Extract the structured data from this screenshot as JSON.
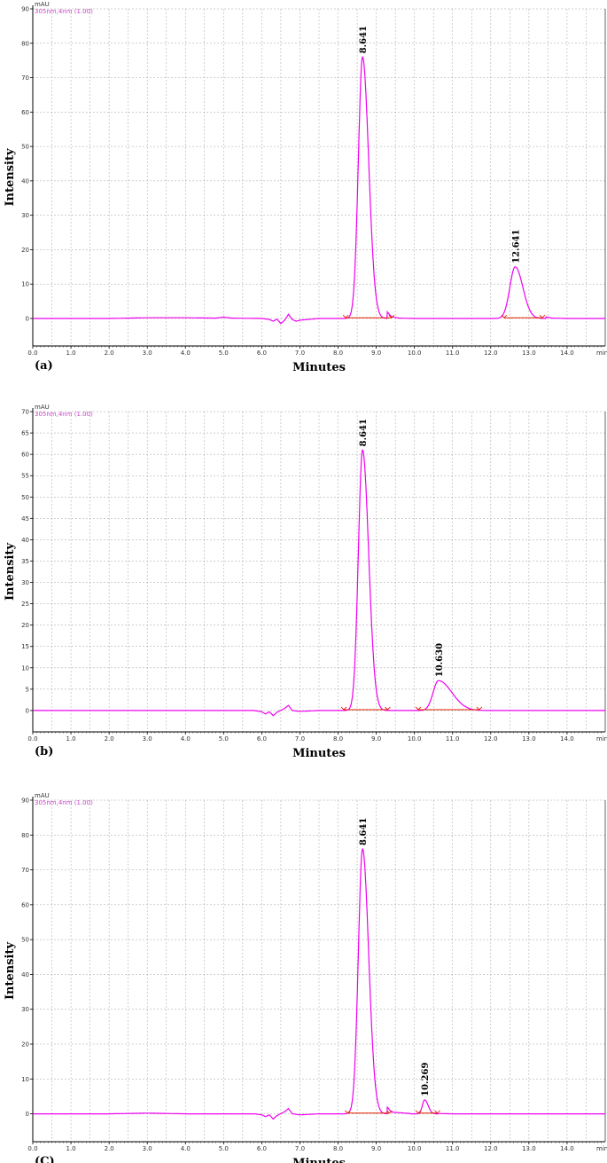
{
  "colors": {
    "trace": "#ee00ee",
    "baseline_marker": "#e02000",
    "grid": "#a0a0a0",
    "axis": "#000000",
    "detector_label": "#cc44cc"
  },
  "chart_data": [
    {
      "type": "line",
      "panel_label": "(a)",
      "unit_top": "mAU",
      "unit_x": "min",
      "detector_label": "305nm,4nm (1.00)",
      "xlabel": "Minutes",
      "ylabel": "Intensity",
      "xlim": [
        0,
        15
      ],
      "ylim": [
        -8,
        90
      ],
      "x_ticks": [
        "0.0",
        "1.0",
        "2.0",
        "3.0",
        "4.0",
        "5.0",
        "6.0",
        "7.0",
        "8.0",
        "9.0",
        "10.0",
        "11.0",
        "12.0",
        "13.0",
        "14.0"
      ],
      "y_ticks": [
        "0",
        "10",
        "20",
        "30",
        "40",
        "50",
        "60",
        "70",
        "80",
        "90"
      ],
      "grid": true,
      "peaks": [
        {
          "label": "8.641",
          "rt": 8.641,
          "height": 76,
          "sigma_left": 0.11,
          "sigma_right": 0.16,
          "integration": [
            8.2,
            9.4
          ]
        },
        {
          "label": "12.641",
          "rt": 12.641,
          "height": 15,
          "sigma_left": 0.14,
          "sigma_right": 0.2,
          "integration": [
            12.35,
            13.35
          ]
        }
      ],
      "trace": {
        "x": [
          0,
          1,
          2,
          3,
          4,
          4.8,
          5.0,
          5.2,
          6.0,
          6.2,
          6.3,
          6.4,
          6.5,
          6.6,
          6.7,
          6.8,
          6.9,
          7.0,
          7.5,
          8.0,
          8.2,
          8.4,
          8.6,
          8.7,
          8.8,
          9.0,
          9.2,
          9.4,
          9.6,
          10,
          11,
          12,
          12.3,
          12.5,
          12.641,
          12.8,
          13.0,
          13.3,
          13.6,
          14,
          15
        ],
        "y": [
          0,
          0,
          0,
          0.2,
          0.2,
          0.1,
          0.4,
          0.1,
          0,
          -0.3,
          -0.8,
          -0.2,
          -1.5,
          -0.5,
          1.2,
          -0.3,
          -0.8,
          -0.5,
          0,
          0,
          0.5,
          12,
          62,
          75,
          66,
          22,
          3,
          0.5,
          0.1,
          0,
          0,
          0,
          0.3,
          6,
          15,
          12,
          4,
          0.8,
          0.1,
          0,
          0
        ]
      }
    },
    {
      "type": "line",
      "panel_label": "(b)",
      "unit_top": "mAU",
      "unit_x": "min",
      "detector_label": "305nm,4nm (1.00)",
      "xlabel": "Minutes",
      "ylabel": "Intensity",
      "xlim": [
        0,
        15
      ],
      "ylim": [
        -5,
        70
      ],
      "x_ticks": [
        "0.0",
        "1.0",
        "2.0",
        "3.0",
        "4.0",
        "5.0",
        "6.0",
        "7.0",
        "8.0",
        "9.0",
        "10.0",
        "11.0",
        "12.0",
        "13.0",
        "14.0"
      ],
      "y_ticks": [
        "0",
        "5",
        "10",
        "15",
        "20",
        "25",
        "30",
        "35",
        "40",
        "45",
        "50",
        "55",
        "60",
        "65",
        "70"
      ],
      "grid": true,
      "peaks": [
        {
          "label": "8.641",
          "rt": 8.641,
          "height": 61,
          "sigma_left": 0.11,
          "sigma_right": 0.16,
          "integration": [
            8.15,
            9.3
          ]
        },
        {
          "label": "10.630",
          "rt": 10.63,
          "height": 7,
          "sigma_left": 0.14,
          "sigma_right": 0.35,
          "integration": [
            10.1,
            11.7
          ]
        }
      ],
      "trace": {
        "x": [
          0,
          1,
          2,
          3,
          4,
          5,
          5.8,
          6.0,
          6.1,
          6.2,
          6.3,
          6.4,
          6.6,
          6.7,
          6.8,
          7.0,
          7.5,
          8.0,
          8.2,
          8.4,
          8.5,
          8.641,
          8.8,
          9.0,
          9.2,
          9.4,
          10,
          10.3,
          10.5,
          10.63,
          10.8,
          11.0,
          11.3,
          11.7,
          12,
          13,
          14,
          15
        ],
        "y": [
          0,
          0,
          0,
          0,
          0,
          0,
          0,
          -0.3,
          -0.8,
          -0.3,
          -1.2,
          -0.4,
          0.5,
          1.2,
          0,
          -0.2,
          0,
          0,
          0.3,
          9,
          38,
          61,
          52,
          15,
          2,
          0.3,
          0,
          0.5,
          3,
          7,
          5,
          2.5,
          1.2,
          0.3,
          0,
          0,
          0,
          0
        ]
      }
    },
    {
      "type": "line",
      "panel_label": "(C)",
      "unit_top": "mAU",
      "unit_x": "min",
      "detector_label": "305nm,4nm (1.00)",
      "xlabel": "Minutes",
      "ylabel": "Intensity",
      "xlim": [
        0,
        15
      ],
      "ylim": [
        -8,
        90
      ],
      "x_ticks": [
        "0.0",
        "1.0",
        "2.0",
        "3.0",
        "4.0",
        "5.0",
        "6.0",
        "7.0",
        "8.0",
        "9.0",
        "10.0",
        "11.0",
        "12.0",
        "13.0",
        "14.0"
      ],
      "y_ticks": [
        "0",
        "10",
        "20",
        "30",
        "40",
        "50",
        "60",
        "70",
        "80",
        "90"
      ],
      "grid": true,
      "peaks": [
        {
          "label": "8.641",
          "rt": 8.641,
          "height": 76,
          "sigma_left": 0.11,
          "sigma_right": 0.16,
          "integration": [
            8.25,
            9.35
          ]
        },
        {
          "label": "10.269",
          "rt": 10.269,
          "height": 4,
          "sigma_left": 0.06,
          "sigma_right": 0.09,
          "integration": [
            10.1,
            10.6
          ]
        }
      ],
      "trace": {
        "x": [
          0,
          1,
          2,
          3,
          4,
          5,
          5.8,
          6.0,
          6.1,
          6.2,
          6.3,
          6.4,
          6.6,
          6.7,
          6.8,
          7.0,
          7.5,
          8.0,
          8.2,
          8.4,
          8.6,
          8.7,
          8.8,
          9.0,
          9.2,
          9.4,
          10,
          10.1,
          10.2,
          10.3,
          10.4,
          10.5,
          10.6,
          11,
          12,
          13,
          14,
          15
        ],
        "y": [
          0,
          0,
          0,
          0.2,
          0,
          0,
          0,
          -0.3,
          -0.8,
          -0.3,
          -1.5,
          -0.5,
          0.6,
          1.5,
          0,
          -0.3,
          0,
          0,
          0.4,
          12,
          62,
          75,
          66,
          22,
          3,
          0.5,
          0,
          0.5,
          2.5,
          4,
          2,
          0.5,
          0.1,
          0,
          0,
          0,
          0,
          0
        ]
      }
    }
  ]
}
